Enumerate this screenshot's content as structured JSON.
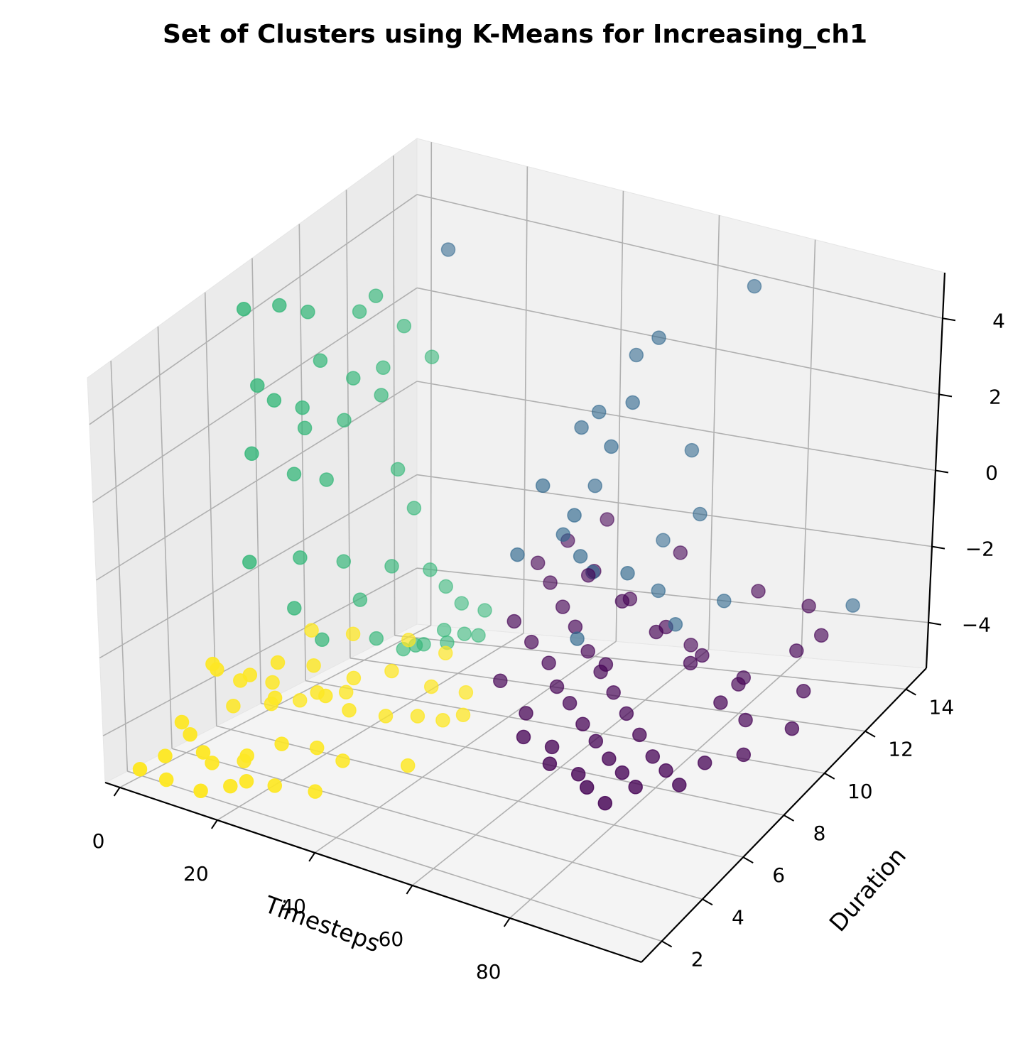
{
  "chart_data": {
    "type": "scatter",
    "title": "Set of Clusters using K-Means for Increasing_ch1",
    "xlabel": "Timesteps",
    "ylabel": "Duration",
    "zlabel": "",
    "x_ticks": [
      "0",
      "20",
      "40",
      "60",
      "80"
    ],
    "y_ticks": [
      "2",
      "4",
      "6",
      "8",
      "10",
      "12",
      "14"
    ],
    "z_ticks": [
      "4",
      "2",
      "0",
      "−2",
      "−4"
    ],
    "xlim": [
      -3,
      107
    ],
    "ylim": [
      1,
      15
    ],
    "zlim": [
      -5.2,
      5.2
    ],
    "grid": true,
    "colormap": "viridis",
    "colors": {
      "cluster_0": "#440154",
      "cluster_1": "#31688e",
      "cluster_2": "#35b779",
      "cluster_3": "#fde725"
    },
    "series": [
      {
        "color_key": "cluster_2",
        "points": [
          [
            0,
            7.0,
            4.5
          ],
          [
            0,
            8.5,
            4.0
          ],
          [
            1,
            9.5,
            3.5
          ],
          [
            0,
            7.5,
            2.5
          ],
          [
            1,
            8.0,
            2.0
          ],
          [
            2,
            9.0,
            1.5
          ],
          [
            0,
            7.2,
            1.0
          ],
          [
            1,
            8.8,
            0.0
          ],
          [
            2,
            10.0,
            -0.5
          ],
          [
            0,
            7.0,
            -1.5
          ],
          [
            1,
            9.0,
            -2.0
          ],
          [
            3,
            10.5,
            -2.5
          ],
          [
            2,
            8.5,
            -3.0
          ],
          [
            4,
            11.0,
            -3.5
          ],
          [
            3,
            9.5,
            -4.0
          ],
          [
            5,
            11.5,
            -4.5
          ],
          [
            6,
            12.5,
            -5.0
          ],
          [
            8,
            13.0,
            -5.0
          ],
          [
            10,
            13.5,
            -4.8
          ],
          [
            12,
            14.0,
            -5.0
          ],
          [
            14,
            14.5,
            -4.6
          ],
          [
            3,
            11.0,
            1.5
          ],
          [
            4,
            12.0,
            0.8
          ],
          [
            2,
            11.5,
            2.8
          ],
          [
            5,
            12.5,
            -1.0
          ],
          [
            6,
            13.0,
            -2.0
          ],
          [
            1,
            10.0,
            2.2
          ],
          [
            3,
            12.0,
            3.0
          ],
          [
            4,
            13.0,
            2.0
          ],
          [
            5,
            14.0,
            1.0
          ],
          [
            6,
            12.0,
            -3.0
          ],
          [
            7,
            13.5,
            -3.5
          ],
          [
            8,
            14.0,
            -4.0
          ],
          [
            2,
            12.5,
            1.2
          ],
          [
            1,
            11.0,
            0.5
          ],
          [
            9,
            14.5,
            -4.5
          ],
          [
            11,
            12.0,
            -4.7
          ],
          [
            13,
            13.0,
            -4.9
          ],
          [
            15,
            14.0,
            -5.0
          ],
          [
            0,
            9.5,
            0.8
          ]
        ]
      },
      {
        "color_key": "cluster_1",
        "points": [
          [
            6,
            14.5,
            3.2
          ],
          [
            55,
            13.5,
            2.8
          ],
          [
            70,
            14.5,
            4.0
          ],
          [
            45,
            13.0,
            1.0
          ],
          [
            48,
            14.0,
            2.0
          ],
          [
            50,
            12.5,
            0.5
          ],
          [
            60,
            14.0,
            0.0
          ],
          [
            38,
            12.0,
            -0.5
          ],
          [
            42,
            13.5,
            -1.0
          ],
          [
            46,
            12.0,
            -2.0
          ],
          [
            52,
            14.5,
            -2.5
          ],
          [
            58,
            13.0,
            -3.0
          ],
          [
            35,
            11.5,
            -2.0
          ],
          [
            40,
            12.5,
            -1.8
          ],
          [
            44,
            13.0,
            -2.8
          ],
          [
            64,
            12.5,
            -3.5
          ],
          [
            72,
            13.0,
            -3.0
          ],
          [
            95,
            14.0,
            -3.2
          ],
          [
            50,
            11.0,
            -3.5
          ],
          [
            56,
            12.0,
            -2.2
          ],
          [
            62,
            14.0,
            -1.5
          ],
          [
            39,
            13.5,
            0.3
          ],
          [
            47,
            11.5,
            -0.8
          ],
          [
            53,
            12.8,
            1.5
          ]
        ]
      },
      {
        "color_key": "cluster_3",
        "points": [
          [
            5,
            2.0,
            -4.5
          ],
          [
            8,
            2.5,
            -4.0
          ],
          [
            10,
            3.0,
            -4.8
          ],
          [
            12,
            2.2,
            -4.2
          ],
          [
            15,
            3.5,
            -4.6
          ],
          [
            18,
            2.8,
            -4.9
          ],
          [
            20,
            4.0,
            -4.3
          ],
          [
            22,
            3.2,
            -5.0
          ],
          [
            25,
            4.5,
            -4.4
          ],
          [
            7,
            5.0,
            -3.5
          ],
          [
            9,
            6.0,
            -3.8
          ],
          [
            11,
            5.5,
            -4.1
          ],
          [
            13,
            7.0,
            -3.6
          ],
          [
            16,
            6.5,
            -4.0
          ],
          [
            19,
            7.5,
            -3.9
          ],
          [
            6,
            4.2,
            -3.0
          ],
          [
            8,
            3.6,
            -2.6
          ],
          [
            10,
            4.8,
            -3.2
          ],
          [
            14,
            5.2,
            -2.9
          ],
          [
            17,
            4.4,
            -3.4
          ],
          [
            21,
            5.8,
            -3.7
          ],
          [
            24,
            6.2,
            -4.1
          ],
          [
            27,
            7.2,
            -4.5
          ],
          [
            30,
            8.0,
            -4.7
          ],
          [
            33,
            8.5,
            -4.9
          ],
          [
            4,
            3.0,
            -4.0
          ],
          [
            12,
            4.0,
            -5.0
          ],
          [
            16,
            2.5,
            -5.0
          ],
          [
            28,
            5.0,
            -4.8
          ],
          [
            35,
            9.0,
            -4.9
          ],
          [
            3,
            5.5,
            -4.4
          ],
          [
            9,
            7.2,
            -4.6
          ],
          [
            15,
            8.0,
            -4.5
          ],
          [
            20,
            9.0,
            -4.2
          ],
          [
            26,
            9.5,
            -4.6
          ],
          [
            31,
            10.0,
            -4.8
          ],
          [
            7,
            8.2,
            -3.3
          ],
          [
            11,
            9.2,
            -3.6
          ],
          [
            18,
            10.2,
            -3.9
          ],
          [
            23,
            10.8,
            -4.3
          ],
          [
            2,
            1.5,
            -4.8
          ],
          [
            6,
            1.8,
            -5.0
          ],
          [
            14,
            1.6,
            -4.9
          ],
          [
            29,
            3.5,
            -5.0
          ],
          [
            37,
            6.0,
            -5.0
          ]
        ]
      },
      {
        "color_key": "cluster_0",
        "points": [
          [
            30,
            13.5,
            -3.0
          ],
          [
            35,
            13.0,
            -3.2
          ],
          [
            40,
            12.5,
            -3.5
          ],
          [
            45,
            12.0,
            -3.7
          ],
          [
            50,
            11.5,
            -4.0
          ],
          [
            55,
            11.0,
            -4.2
          ],
          [
            60,
            10.5,
            -4.4
          ],
          [
            65,
            10.0,
            -4.6
          ],
          [
            70,
            9.5,
            -4.8
          ],
          [
            75,
            9.0,
            -5.0
          ],
          [
            80,
            8.5,
            -5.0
          ],
          [
            85,
            8.0,
            -5.0
          ],
          [
            32,
            12.0,
            -3.8
          ],
          [
            38,
            11.5,
            -4.0
          ],
          [
            44,
            11.0,
            -4.2
          ],
          [
            48,
            10.5,
            -4.5
          ],
          [
            53,
            10.0,
            -4.6
          ],
          [
            58,
            9.5,
            -4.8
          ],
          [
            63,
            9.0,
            -4.9
          ],
          [
            68,
            8.5,
            -5.0
          ],
          [
            73,
            8.0,
            -5.0
          ],
          [
            78,
            7.5,
            -5.0
          ],
          [
            34,
            14.0,
            -2.6
          ],
          [
            42,
            13.5,
            -3.0
          ],
          [
            52,
            13.0,
            -3.3
          ],
          [
            62,
            12.5,
            -3.6
          ],
          [
            72,
            12.0,
            -3.9
          ],
          [
            82,
            11.5,
            -4.2
          ],
          [
            88,
            10.5,
            -4.5
          ],
          [
            92,
            9.5,
            -4.8
          ],
          [
            36,
            10.5,
            -4.6
          ],
          [
            46,
            9.5,
            -4.8
          ],
          [
            56,
            8.5,
            -5.0
          ],
          [
            66,
            7.5,
            -5.0
          ],
          [
            76,
            6.5,
            -5.0
          ],
          [
            90,
            13.0,
            -2.8
          ],
          [
            95,
            12.5,
            -3.2
          ],
          [
            98,
            11.0,
            -3.8
          ],
          [
            40,
            14.5,
            -2.2
          ],
          [
            58,
            14.0,
            -2.5
          ],
          [
            77,
            13.5,
            -2.9
          ],
          [
            86,
            9.0,
            -4.9
          ],
          [
            70,
            7.0,
            -5.0
          ],
          [
            60,
            7.5,
            -4.9
          ],
          [
            50,
            8.5,
            -4.9
          ],
          [
            44,
            12.8,
            -2.8
          ],
          [
            54,
            12.2,
            -3.0
          ],
          [
            64,
            11.6,
            -3.3
          ],
          [
            74,
            11.0,
            -3.6
          ],
          [
            84,
            10.2,
            -4.0
          ],
          [
            92,
            12.0,
            -3.4
          ],
          [
            100,
            10.0,
            -4.2
          ],
          [
            66,
            12.8,
            -4.1
          ],
          [
            80,
            12.2,
            -4.4
          ],
          [
            57,
            10.8,
            -3.9
          ]
        ]
      }
    ]
  }
}
